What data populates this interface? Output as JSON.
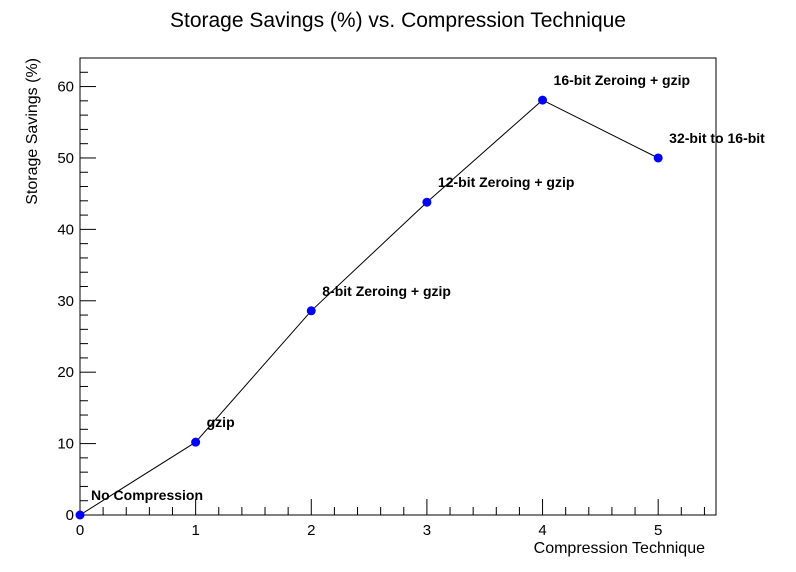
{
  "chart_data": {
    "type": "line",
    "title": "Storage Savings (%) vs. Compression Technique",
    "xlabel": "Compression Technique",
    "ylabel": "Storage Savings (%)",
    "xlim": [
      0,
      5.5
    ],
    "ylim": [
      0,
      64
    ],
    "x_ticks": [
      0,
      1,
      2,
      3,
      4,
      5
    ],
    "y_ticks": [
      0,
      10,
      20,
      30,
      40,
      50,
      60
    ],
    "grid": false,
    "marker_color": "#0000ff",
    "line_color": "#000000",
    "points": [
      {
        "x": 0,
        "y": 0,
        "label": "No Compression"
      },
      {
        "x": 1,
        "y": 10.2,
        "label": "gzip"
      },
      {
        "x": 2,
        "y": 28.6,
        "label": "8-bit Zeroing + gzip"
      },
      {
        "x": 3,
        "y": 43.8,
        "label": "12-bit Zeroing + gzip"
      },
      {
        "x": 4,
        "y": 58.1,
        "label": "16-bit Zeroing + gzip"
      },
      {
        "x": 5,
        "y": 50.0,
        "label": "32-bit to 16-bit"
      }
    ]
  }
}
